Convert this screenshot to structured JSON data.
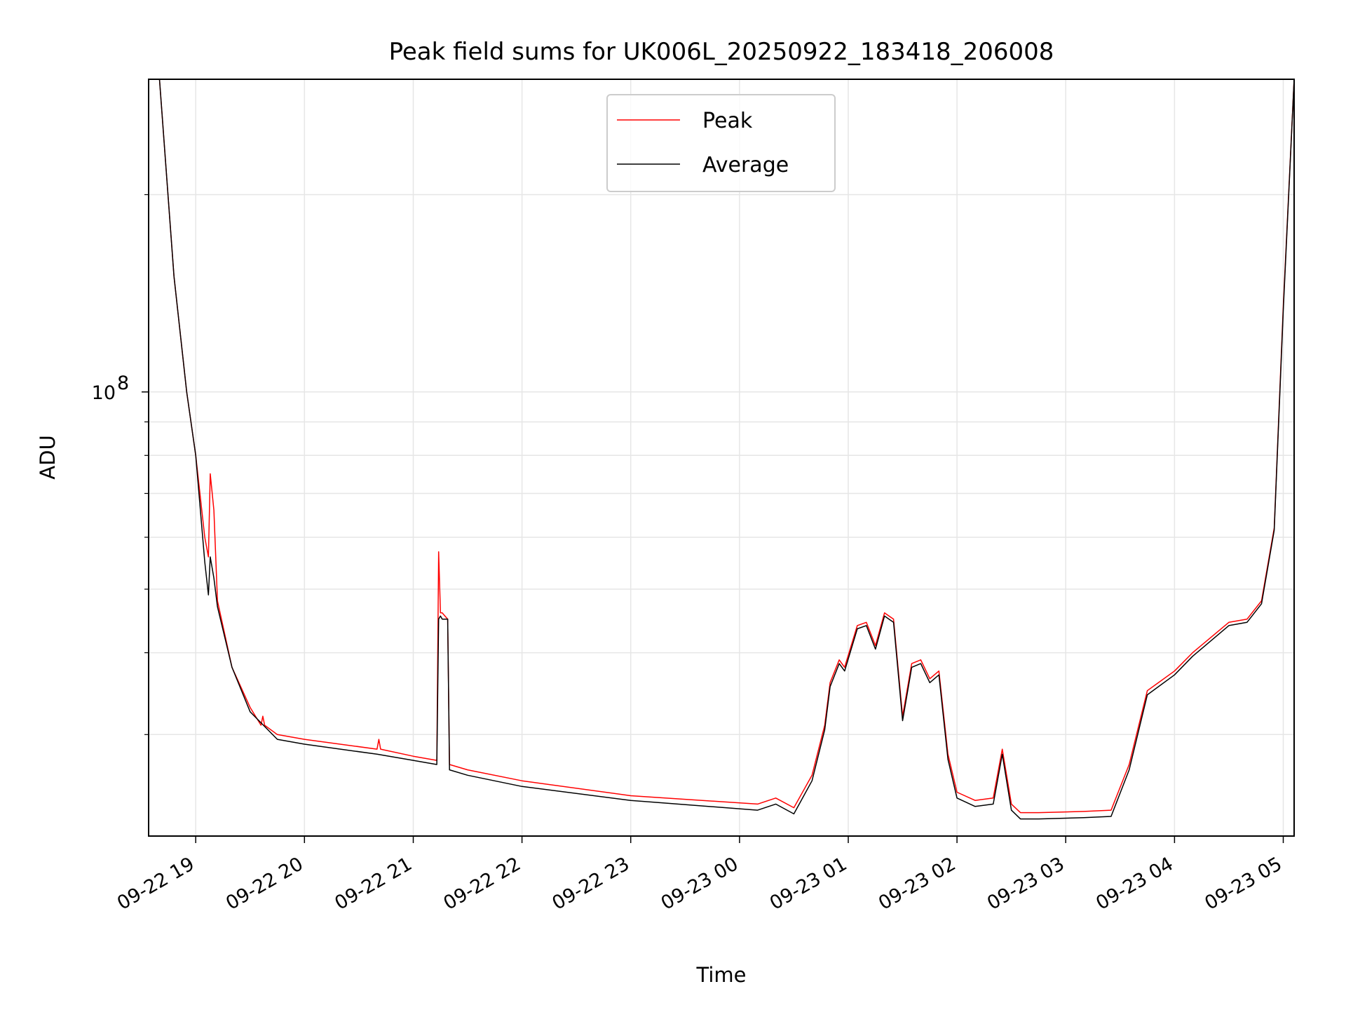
{
  "chart_data": {
    "type": "line",
    "title": "Peak field sums for UK006L_20250922_183418_206008",
    "xlabel": "Time",
    "ylabel": "ADU",
    "yscale": "log",
    "ylim": [
      21000000,
      300000000
    ],
    "xlim": [
      "2025-09-22 18:34",
      "2025-09-23 05:06"
    ],
    "x_tick_labels": [
      "09-22 19",
      "09-22 20",
      "09-22 21",
      "09-22 22",
      "09-22 23",
      "09-23 00",
      "09-23 01",
      "09-23 02",
      "09-23 03",
      "09-23 04",
      "09-23 05"
    ],
    "x_ticks": [
      "2025-09-22 19:00",
      "2025-09-22 20:00",
      "2025-09-22 21:00",
      "2025-09-22 22:00",
      "2025-09-22 23:00",
      "2025-09-23 00:00",
      "2025-09-23 01:00",
      "2025-09-23 02:00",
      "2025-09-23 03:00",
      "2025-09-23 04:00",
      "2025-09-23 05:00"
    ],
    "y_tick_labels": [
      {
        "value": 100000000,
        "label": "10",
        "exponent": "8"
      }
    ],
    "y_minor_ticks": [
      30000000,
      40000000,
      50000000,
      60000000,
      70000000,
      80000000,
      90000000,
      200000000
    ],
    "grid": true,
    "legend_position": "upper-center",
    "colors": {
      "Peak": "#ff0000",
      "Average": "#000000"
    },
    "series": [
      {
        "name": "Peak",
        "x": [
          "2025-09-22 18:40",
          "2025-09-22 18:48",
          "2025-09-22 18:55",
          "2025-09-22 19:00",
          "2025-09-22 19:05",
          "2025-09-22 19:07",
          "2025-09-22 19:08",
          "2025-09-22 19:10",
          "2025-09-22 19:12",
          "2025-09-22 19:20",
          "2025-09-22 19:30",
          "2025-09-22 19:36",
          "2025-09-22 19:37",
          "2025-09-22 19:38",
          "2025-09-22 19:45",
          "2025-09-22 20:00",
          "2025-09-22 20:40",
          "2025-09-22 20:41",
          "2025-09-22 20:42",
          "2025-09-22 21:00",
          "2025-09-22 21:13",
          "2025-09-22 21:14",
          "2025-09-22 21:15",
          "2025-09-22 21:16",
          "2025-09-22 21:19",
          "2025-09-22 21:20",
          "2025-09-22 21:30",
          "2025-09-22 22:00",
          "2025-09-22 23:00",
          "2025-09-23 00:10",
          "2025-09-23 00:20",
          "2025-09-23 00:30",
          "2025-09-23 00:40",
          "2025-09-23 00:47",
          "2025-09-23 00:50",
          "2025-09-23 00:55",
          "2025-09-23 00:58",
          "2025-09-23 01:05",
          "2025-09-23 01:10",
          "2025-09-23 01:15",
          "2025-09-23 01:20",
          "2025-09-23 01:25",
          "2025-09-23 01:30",
          "2025-09-23 01:35",
          "2025-09-23 01:40",
          "2025-09-23 01:45",
          "2025-09-23 01:50",
          "2025-09-23 01:55",
          "2025-09-23 02:00",
          "2025-09-23 02:10",
          "2025-09-23 02:20",
          "2025-09-23 02:25",
          "2025-09-23 02:30",
          "2025-09-23 02:35",
          "2025-09-23 02:45",
          "2025-09-23 03:10",
          "2025-09-23 03:25",
          "2025-09-23 03:35",
          "2025-09-23 03:45",
          "2025-09-23 04:00",
          "2025-09-23 04:10",
          "2025-09-23 04:30",
          "2025-09-23 04:40",
          "2025-09-23 04:48",
          "2025-09-23 04:55",
          "2025-09-23 05:00",
          "2025-09-23 05:06"
        ],
        "y": [
          300000000,
          150000000,
          100000000,
          80000000,
          60000000,
          56000000,
          75000000,
          66000000,
          48000000,
          38000000,
          33000000,
          31000000,
          32000000,
          31000000,
          30000000,
          29500000,
          28500000,
          29500000,
          28500000,
          27800000,
          27400000,
          57000000,
          46000000,
          46000000,
          45000000,
          27000000,
          26500000,
          25500000,
          24200000,
          23500000,
          24000000,
          23200000,
          26000000,
          31000000,
          36000000,
          39000000,
          38000000,
          44000000,
          44500000,
          41000000,
          46000000,
          45000000,
          32000000,
          38500000,
          39000000,
          36500000,
          37500000,
          28000000,
          24500000,
          23800000,
          24000000,
          28500000,
          23500000,
          22800000,
          22800000,
          22900000,
          23000000,
          27000000,
          35000000,
          37500000,
          40000000,
          44500000,
          45000000,
          48000000,
          62000000,
          135000000,
          300000000
        ]
      },
      {
        "name": "Average",
        "x": [
          "2025-09-22 18:40",
          "2025-09-22 18:48",
          "2025-09-22 18:55",
          "2025-09-22 19:00",
          "2025-09-22 19:05",
          "2025-09-22 19:07",
          "2025-09-22 19:08",
          "2025-09-22 19:10",
          "2025-09-22 19:12",
          "2025-09-22 19:20",
          "2025-09-22 19:30",
          "2025-09-22 19:45",
          "2025-09-22 20:00",
          "2025-09-22 20:40",
          "2025-09-22 21:00",
          "2025-09-22 21:13",
          "2025-09-22 21:14",
          "2025-09-22 21:15",
          "2025-09-22 21:16",
          "2025-09-22 21:19",
          "2025-09-22 21:20",
          "2025-09-22 21:30",
          "2025-09-22 22:00",
          "2025-09-22 23:00",
          "2025-09-23 00:10",
          "2025-09-23 00:20",
          "2025-09-23 00:30",
          "2025-09-23 00:40",
          "2025-09-23 00:47",
          "2025-09-23 00:50",
          "2025-09-23 00:55",
          "2025-09-23 00:58",
          "2025-09-23 01:05",
          "2025-09-23 01:10",
          "2025-09-23 01:15",
          "2025-09-23 01:20",
          "2025-09-23 01:25",
          "2025-09-23 01:30",
          "2025-09-23 01:35",
          "2025-09-23 01:40",
          "2025-09-23 01:45",
          "2025-09-23 01:50",
          "2025-09-23 01:55",
          "2025-09-23 02:00",
          "2025-09-23 02:10",
          "2025-09-23 02:20",
          "2025-09-23 02:25",
          "2025-09-23 02:30",
          "2025-09-23 02:35",
          "2025-09-23 02:45",
          "2025-09-23 03:10",
          "2025-09-23 03:25",
          "2025-09-23 03:35",
          "2025-09-23 03:45",
          "2025-09-23 04:00",
          "2025-09-23 04:10",
          "2025-09-23 04:30",
          "2025-09-23 04:40",
          "2025-09-23 04:48",
          "2025-09-23 04:55",
          "2025-09-23 05:00",
          "2025-09-23 05:06"
        ],
        "y": [
          300000000,
          150000000,
          100000000,
          80000000,
          55000000,
          49000000,
          56000000,
          52000000,
          47000000,
          38000000,
          32500000,
          29500000,
          29000000,
          28000000,
          27400000,
          27000000,
          45000000,
          45500000,
          45000000,
          45000000,
          26500000,
          26000000,
          25000000,
          23800000,
          23000000,
          23500000,
          22700000,
          25500000,
          30500000,
          35500000,
          38500000,
          37500000,
          43500000,
          44000000,
          40500000,
          45500000,
          44500000,
          31500000,
          38000000,
          38500000,
          36000000,
          37000000,
          27500000,
          24000000,
          23300000,
          23500000,
          28000000,
          23000000,
          22300000,
          22300000,
          22400000,
          22500000,
          26500000,
          34500000,
          37000000,
          39500000,
          44000000,
          44500000,
          47500000,
          61500000,
          133000000,
          300000000
        ]
      }
    ]
  }
}
